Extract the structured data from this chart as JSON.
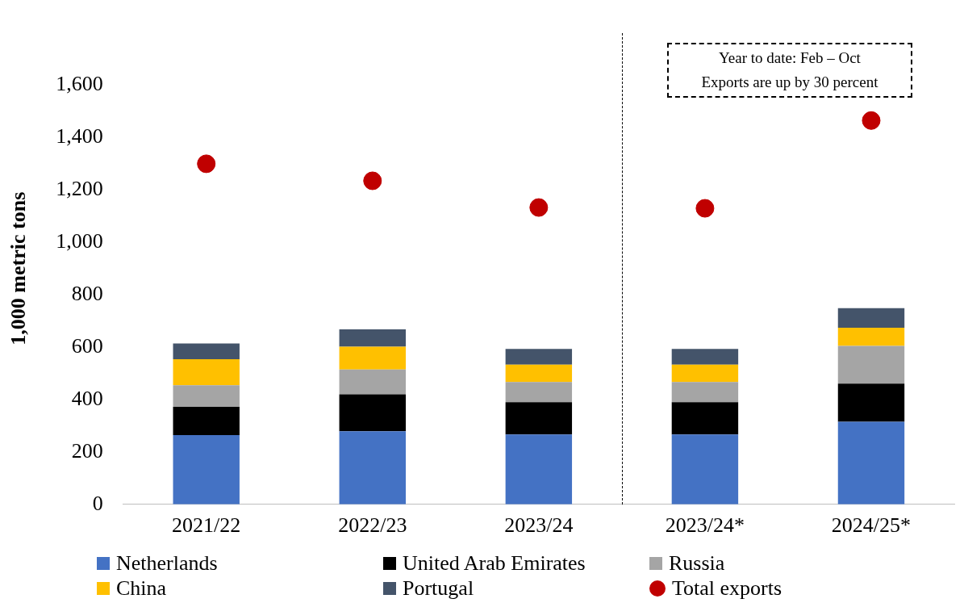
{
  "chart_data": {
    "type": "bar",
    "stacked": true,
    "ylabel": "1,000 metric tons",
    "categories": [
      "2021/22",
      "2022/23",
      "2023/24",
      "2023/24*",
      "2024/25*"
    ],
    "series": [
      {
        "name": "Netherlands",
        "color": "#4472c4",
        "values": [
          264,
          279,
          267,
          267,
          315
        ]
      },
      {
        "name": "United Arab Emirates",
        "color": "#000000",
        "values": [
          108,
          141,
          123,
          123,
          146
        ]
      },
      {
        "name": "Russia",
        "color": "#a5a5a5",
        "values": [
          83,
          95,
          77,
          77,
          144
        ]
      },
      {
        "name": "China",
        "color": "#ffc000",
        "values": [
          99,
          87,
          66,
          66,
          69
        ]
      },
      {
        "name": "Portugal",
        "color": "#44546a",
        "values": [
          60,
          66,
          60,
          60,
          75
        ]
      },
      {
        "name": "Total exports",
        "type": "scatter",
        "color": "#c00000",
        "x": [
          "2021/22",
          "2022/23",
          "2023/24",
          "2023/24*",
          "2024/25*"
        ],
        "values": [
          1300,
          1235,
          1133,
          1130,
          1465
        ]
      }
    ],
    "ylim": [
      0,
      1800
    ],
    "yticks": [
      0,
      200,
      400,
      600,
      800,
      {
        "value": 1000,
        "label": "1,000"
      },
      {
        "value": 1200,
        "label": "1,200"
      },
      {
        "value": 1400,
        "label": "1,400"
      },
      {
        "value": 1600,
        "label": "1,600"
      }
    ],
    "grid": false,
    "legend": "bottom",
    "marker": "circle",
    "annotations": [
      "Year to date: Feb – Oct",
      "Exports are up by 30 percent"
    ]
  }
}
